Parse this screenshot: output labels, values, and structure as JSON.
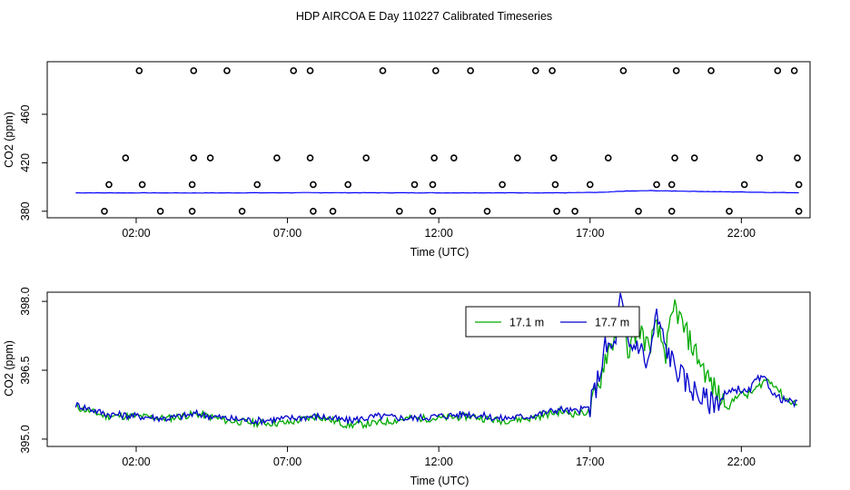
{
  "title": "HDP AIRCOA E  Day 110227  Calibrated Timeseries",
  "chart_data": [
    {
      "type": "scatter",
      "xlabel": "Time (UTC)",
      "ylabel": "CO2 (ppm)",
      "xticks": [
        "02:00",
        "07:00",
        "12:00",
        "17:00",
        "22:00"
      ],
      "xtick_values": [
        2,
        7,
        12,
        17,
        22
      ],
      "yticks": [
        380,
        420,
        460
      ],
      "xlim": [
        -0.94,
        24.27
      ],
      "ylim": [
        374.6,
        503.4
      ],
      "grid": false,
      "points": {
        "levels": [
          380,
          402,
          424,
          496
        ],
        "x_by_level": [
          [
            0.95,
            2.8,
            3.85,
            5.5,
            7.85,
            8.5,
            10.7,
            11.8,
            13.6,
            15.9,
            16.5,
            18.6,
            19.7,
            21.6,
            23.9
          ],
          [
            1.1,
            2.2,
            3.85,
            6.0,
            7.85,
            9.0,
            11.2,
            11.8,
            14.1,
            15.85,
            17.0,
            19.2,
            19.7,
            22.1,
            23.9
          ],
          [
            1.65,
            3.9,
            4.45,
            6.65,
            7.75,
            9.6,
            11.85,
            12.5,
            14.6,
            15.8,
            17.6,
            19.8,
            20.45,
            22.6,
            23.85
          ],
          [
            2.1,
            3.9,
            5.0,
            7.2,
            7.75,
            10.15,
            11.9,
            13.05,
            15.2,
            15.75,
            18.1,
            19.85,
            21.0,
            23.2,
            23.75
          ]
        ]
      },
      "series": [
        {
          "color": "#0000ff",
          "x": [
            0,
            4,
            8,
            12,
            16,
            17.5,
            18,
            19,
            20,
            21,
            22,
            23,
            24
          ],
          "values": [
            395.2,
            395.1,
            395.3,
            395.2,
            395.2,
            395.6,
            396.5,
            397.0,
            396.6,
            396.2,
            395.9,
            395.5,
            395.3
          ]
        }
      ]
    },
    {
      "type": "line",
      "xlabel": "Time (UTC)",
      "ylabel": "CO2 (ppm)",
      "xticks": [
        "02:00",
        "07:00",
        "12:00",
        "17:00",
        "22:00"
      ],
      "xtick_values": [
        2,
        7,
        12,
        17,
        22
      ],
      "yticks": [
        "395.0",
        "396.5",
        "398.0"
      ],
      "ytick_values": [
        395.0,
        396.5,
        398.0
      ],
      "xlim": [
        -0.94,
        24.27
      ],
      "ylim": [
        394.84,
        398.2
      ],
      "grid": false,
      "legend_position": "top-right",
      "series": [
        {
          "name": "17.1 m",
          "color": "#00aa00",
          "x": [
            0,
            1,
            2,
            3,
            4,
            5,
            6,
            7,
            8,
            9,
            10,
            11,
            12,
            13,
            14,
            15,
            16,
            16.5,
            17,
            17.3,
            17.5,
            17.8,
            18.0,
            18.3,
            18.6,
            18.9,
            19.2,
            19.5,
            19.8,
            20.1,
            20.4,
            20.7,
            21.0,
            21.3,
            21.6,
            21.9,
            22.2,
            22.5,
            22.8,
            23.1,
            23.4,
            23.7,
            23.9
          ],
          "values": [
            395.7,
            395.5,
            395.5,
            395.45,
            395.55,
            395.4,
            395.35,
            395.35,
            395.5,
            395.3,
            395.35,
            395.45,
            395.45,
            395.5,
            395.4,
            395.45,
            395.6,
            395.55,
            395.6,
            396.2,
            396.8,
            397.2,
            397.6,
            396.9,
            397.5,
            397.0,
            397.4,
            396.9,
            397.9,
            397.4,
            397.0,
            396.6,
            396.2,
            395.9,
            395.7,
            396.0,
            395.95,
            396.1,
            396.3,
            396.2,
            395.9,
            395.8,
            395.75
          ]
        },
        {
          "name": "17.7 m",
          "color": "#0000cc",
          "x": [
            0,
            1,
            2,
            3,
            4,
            5,
            6,
            7,
            8,
            9,
            10,
            11,
            12,
            13,
            14,
            15,
            16,
            16.5,
            17,
            17.3,
            17.5,
            17.8,
            18.0,
            18.3,
            18.6,
            18.9,
            19.2,
            19.5,
            19.8,
            20.1,
            20.4,
            20.7,
            21.0,
            21.3,
            21.6,
            21.9,
            22.2,
            22.5,
            22.8,
            23.1,
            23.4,
            23.7,
            23.9
          ],
          "values": [
            395.75,
            395.55,
            395.5,
            395.45,
            395.55,
            395.45,
            395.4,
            395.45,
            395.5,
            395.4,
            395.5,
            395.45,
            395.5,
            395.55,
            395.45,
            395.5,
            395.65,
            395.6,
            395.7,
            396.4,
            397.0,
            397.0,
            398.1,
            397.0,
            397.1,
            396.6,
            397.7,
            397.0,
            396.6,
            396.3,
            396.1,
            395.9,
            395.8,
            395.9,
            396.0,
            396.1,
            396.0,
            396.3,
            396.3,
            395.95,
            395.85,
            395.8,
            395.75
          ]
        }
      ]
    }
  ]
}
